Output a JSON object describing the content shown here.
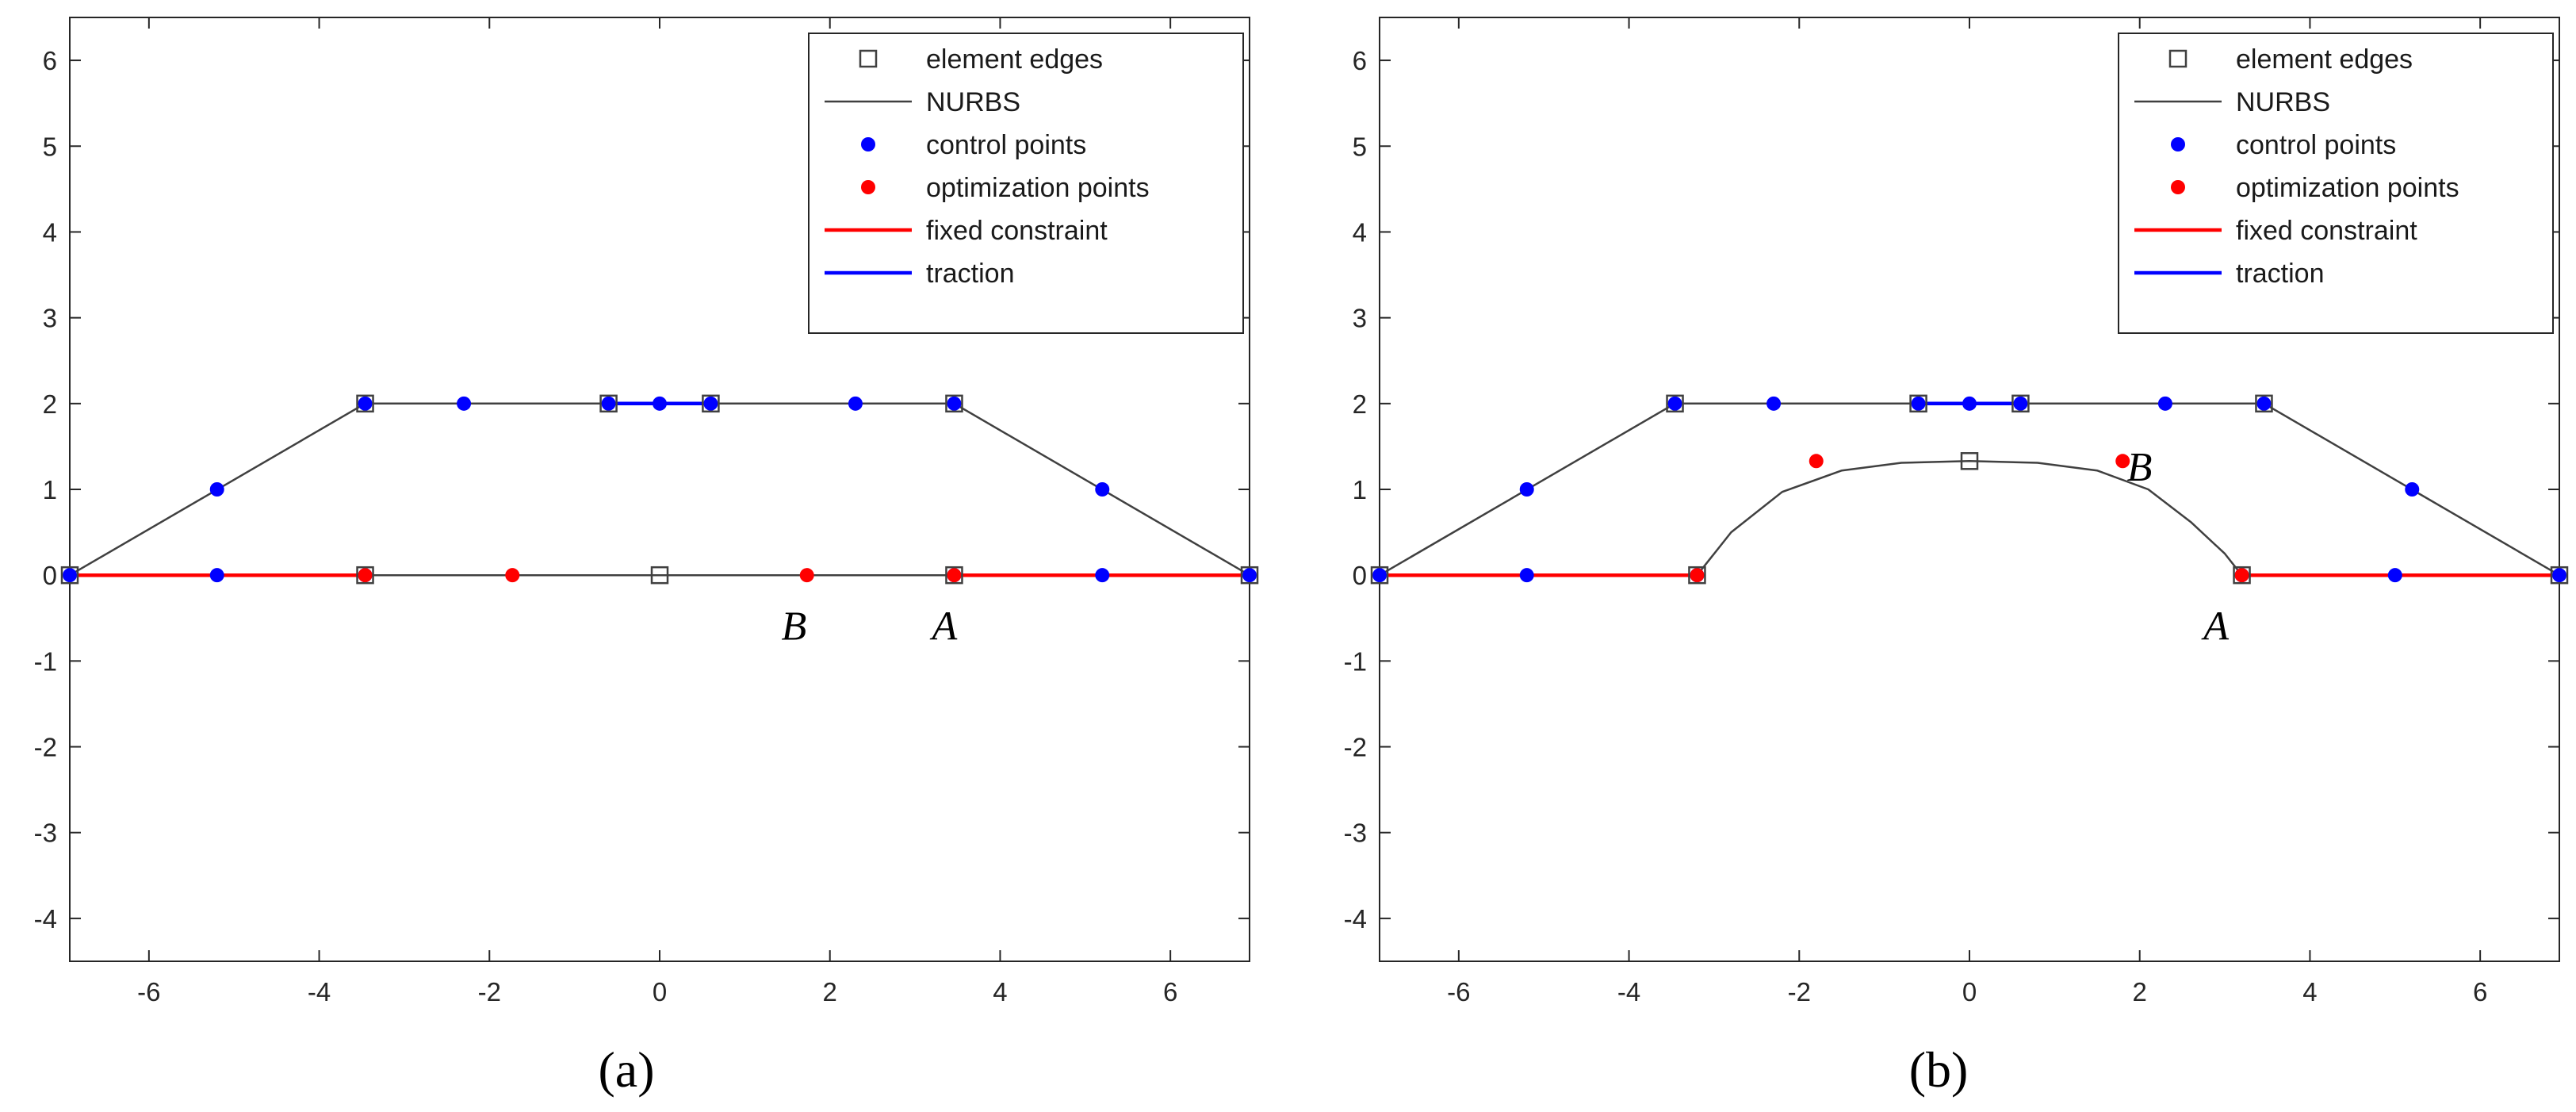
{
  "chart_data": [
    {
      "type": "scatter",
      "caption": "(a)",
      "xlim": [
        -6.93,
        6.93
      ],
      "ylim": [
        -4.5,
        6.5
      ],
      "xticks": [
        -6,
        -4,
        -2,
        0,
        2,
        4,
        6
      ],
      "yticks": [
        -4,
        -3,
        -2,
        -1,
        0,
        1,
        2,
        3,
        4,
        5,
        6
      ],
      "grid": false,
      "legend_position": "top-right",
      "legend": [
        "element edges",
        "NURBS",
        "control points",
        "optimization points",
        "fixed constraint",
        "traction"
      ],
      "colors": {
        "nurbs": "#404040",
        "control": "#0000ff",
        "optimization": "#ff0000",
        "fixed": "#ff0000",
        "traction": "#0000ff",
        "edge": "#404040"
      },
      "nurbs_top": [
        [
          -6.93,
          0
        ],
        [
          -3.46,
          2
        ],
        [
          3.46,
          2
        ],
        [
          6.93,
          0
        ]
      ],
      "nurbs_bottom": [
        [
          -6.93,
          0
        ],
        [
          6.93,
          0
        ]
      ],
      "fixed_constraint": [
        [
          [
            -6.93,
            0
          ],
          [
            -3.46,
            0
          ]
        ],
        [
          [
            3.46,
            0
          ],
          [
            6.93,
            0
          ]
        ]
      ],
      "traction": [
        [
          -0.6,
          2
        ],
        [
          0.6,
          2
        ]
      ],
      "element_edges": [
        [
          -6.93,
          0
        ],
        [
          -3.46,
          0
        ],
        [
          0,
          0
        ],
        [
          3.46,
          0
        ],
        [
          6.93,
          0
        ],
        [
          -3.46,
          2
        ],
        [
          -0.6,
          2
        ],
        [
          0.6,
          2
        ],
        [
          3.46,
          2
        ]
      ],
      "control_points": [
        [
          -6.93,
          0
        ],
        [
          -5.2,
          0
        ],
        [
          -3.46,
          0
        ],
        [
          3.46,
          0
        ],
        [
          5.2,
          0
        ],
        [
          6.93,
          0
        ],
        [
          -5.2,
          1
        ],
        [
          5.2,
          1
        ],
        [
          -3.46,
          2
        ],
        [
          -2.3,
          2
        ],
        [
          -0.6,
          2
        ],
        [
          0,
          2
        ],
        [
          0.6,
          2
        ],
        [
          2.3,
          2
        ],
        [
          3.46,
          2
        ]
      ],
      "optimization_points": [
        [
          -3.46,
          0
        ],
        [
          -1.73,
          0
        ],
        [
          1.73,
          0
        ],
        [
          3.46,
          0
        ]
      ],
      "annotations": [
        {
          "text": "B",
          "x": 1.43,
          "y": -0.75
        },
        {
          "text": "A",
          "x": 3.2,
          "y": -0.75
        }
      ]
    },
    {
      "type": "scatter",
      "caption": "(b)",
      "xlim": [
        -6.93,
        6.93
      ],
      "ylim": [
        -4.5,
        6.5
      ],
      "xticks": [
        -6,
        -4,
        -2,
        0,
        2,
        4,
        6
      ],
      "yticks": [
        -4,
        -3,
        -2,
        -1,
        0,
        1,
        2,
        3,
        4,
        5,
        6
      ],
      "grid": false,
      "legend_position": "top-right",
      "legend": [
        "element edges",
        "NURBS",
        "control points",
        "optimization points",
        "fixed constraint",
        "traction"
      ],
      "colors": {
        "nurbs": "#404040",
        "control": "#0000ff",
        "optimization": "#ff0000",
        "fixed": "#ff0000",
        "traction": "#0000ff",
        "edge": "#404040"
      },
      "nurbs_top": [
        [
          -6.93,
          0
        ],
        [
          -3.46,
          2
        ],
        [
          3.46,
          2
        ],
        [
          6.93,
          0
        ]
      ],
      "nurbs_bottom": [
        [
          -6.93,
          0
        ],
        [
          -3.2,
          0
        ],
        [
          -2.8,
          0.5
        ],
        [
          -2.2,
          0.97
        ],
        [
          -1.5,
          1.22
        ],
        [
          -0.8,
          1.31
        ],
        [
          0,
          1.33
        ],
        [
          0.8,
          1.31
        ],
        [
          1.5,
          1.22
        ],
        [
          2.1,
          1.0
        ],
        [
          2.6,
          0.62
        ],
        [
          3.0,
          0.25
        ],
        [
          3.2,
          0
        ],
        [
          6.93,
          0
        ]
      ],
      "fixed_constraint": [
        [
          [
            -6.93,
            0
          ],
          [
            -3.2,
            0
          ]
        ],
        [
          [
            3.2,
            0
          ],
          [
            6.93,
            0
          ]
        ]
      ],
      "traction": [
        [
          -0.6,
          2
        ],
        [
          0.6,
          2
        ]
      ],
      "element_edges": [
        [
          -6.93,
          0
        ],
        [
          -3.2,
          0
        ],
        [
          0,
          1.33
        ],
        [
          3.2,
          0
        ],
        [
          6.93,
          0
        ],
        [
          -3.46,
          2
        ],
        [
          -0.6,
          2
        ],
        [
          0.6,
          2
        ],
        [
          3.46,
          2
        ]
      ],
      "control_points": [
        [
          -6.93,
          0
        ],
        [
          -5.2,
          0
        ],
        [
          -3.2,
          0
        ],
        [
          3.2,
          0
        ],
        [
          5.0,
          0
        ],
        [
          6.93,
          0
        ],
        [
          -5.2,
          1
        ],
        [
          5.2,
          1
        ],
        [
          -3.46,
          2
        ],
        [
          -2.3,
          2
        ],
        [
          -0.6,
          2
        ],
        [
          0,
          2
        ],
        [
          0.6,
          2
        ],
        [
          2.3,
          2
        ],
        [
          3.46,
          2
        ]
      ],
      "optimization_points": [
        [
          -3.2,
          0
        ],
        [
          -1.8,
          1.33
        ],
        [
          1.8,
          1.33
        ],
        [
          3.2,
          0
        ]
      ],
      "annotations": [
        {
          "text": "B",
          "x": 1.85,
          "y": 1.1
        },
        {
          "text": "A",
          "x": 2.75,
          "y": -0.75
        }
      ]
    }
  ]
}
